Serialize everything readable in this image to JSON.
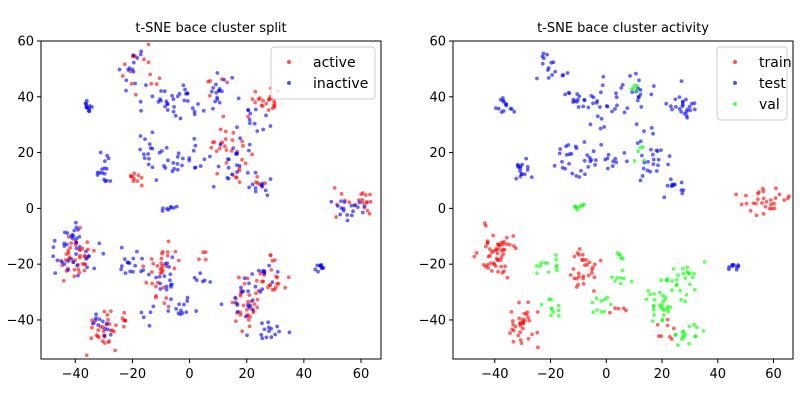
{
  "chart_data": [
    {
      "type": "scatter",
      "title": "t-SNE bace cluster split",
      "xlabel": "",
      "ylabel": "",
      "xlim": [
        -52,
        67
      ],
      "ylim": [
        -54,
        60
      ],
      "xticks": [
        -40,
        -20,
        0,
        20,
        40,
        60
      ],
      "yticks": [
        -40,
        -20,
        0,
        20,
        40,
        60
      ],
      "grid": false,
      "legend_position": "top-right",
      "series": [
        {
          "name": "active",
          "color": "#ff0000",
          "clusters": [
            {
              "cx": -40,
              "cy": -18,
              "sx": 3.5,
              "sy": 4.5,
              "n": 40
            },
            {
              "cx": -30,
              "cy": -43,
              "sx": 3.0,
              "sy": 3.5,
              "n": 30
            },
            {
              "cx": -23,
              "cy": -39,
              "sx": 1.5,
              "sy": 1.5,
              "n": 5
            },
            {
              "cx": -9,
              "cy": -22,
              "sx": 3.0,
              "sy": 5.0,
              "n": 32
            },
            {
              "cx": 27,
              "cy": 38,
              "sx": 2.5,
              "sy": 2.5,
              "n": 22
            },
            {
              "cx": 14,
              "cy": 22,
              "sx": 4.0,
              "sy": 4.0,
              "n": 30
            },
            {
              "cx": -20,
              "cy": 11,
              "sx": 2.0,
              "sy": 1.5,
              "n": 10
            },
            {
              "cx": -18,
              "cy": 47,
              "sx": 3.5,
              "sy": 5.0,
              "n": 15
            },
            {
              "cx": 27,
              "cy": -27,
              "sx": 3.5,
              "sy": 4.0,
              "n": 30
            },
            {
              "cx": 20,
              "cy": -36,
              "sx": 3.5,
              "sy": 5.0,
              "n": 25
            },
            {
              "cx": 57,
              "cy": 2,
              "sx": 4.5,
              "sy": 2.5,
              "n": 20
            },
            {
              "cx": 25,
              "cy": 8,
              "sx": 2.0,
              "sy": 1.5,
              "n": 6
            },
            {
              "cx": 5,
              "cy": -17,
              "sx": 1.0,
              "sy": 1.0,
              "n": 4
            },
            {
              "cx": 10,
              "cy": 43,
              "sx": 2.0,
              "sy": 2.0,
              "n": 5
            }
          ]
        },
        {
          "name": "inactive",
          "color": "#0000ff",
          "clusters": [
            {
              "cx": -40,
              "cy": -14,
              "sx": 4.5,
              "sy": 5.0,
              "n": 40
            },
            {
              "cx": -35,
              "cy": 37,
              "sx": 2.0,
              "sy": 1.5,
              "n": 12
            },
            {
              "cx": -30,
              "cy": 14,
              "sx": 1.5,
              "sy": 3.0,
              "n": 16
            },
            {
              "cx": -20,
              "cy": 50,
              "sx": 2.5,
              "sy": 3.0,
              "n": 14
            },
            {
              "cx": -14,
              "cy": 20,
              "sx": 2.0,
              "sy": 4.0,
              "n": 14
            },
            {
              "cx": -10,
              "cy": 39,
              "sx": 3.0,
              "sy": 3.0,
              "n": 14
            },
            {
              "cx": -7,
              "cy": 17,
              "sx": 2.5,
              "sy": 3.0,
              "n": 14
            },
            {
              "cx": 0,
              "cy": 38,
              "sx": 3.5,
              "sy": 5.0,
              "n": 20
            },
            {
              "cx": 10,
              "cy": 42,
              "sx": 2.5,
              "sy": 3.0,
              "n": 16
            },
            {
              "cx": 2,
              "cy": 18,
              "sx": 2.0,
              "sy": 2.0,
              "n": 10
            },
            {
              "cx": 15,
              "cy": 15,
              "sx": 4.0,
              "sy": 4.5,
              "n": 20
            },
            {
              "cx": 23,
              "cy": 32,
              "sx": 3.0,
              "sy": 4.0,
              "n": 14
            },
            {
              "cx": 24,
              "cy": 8,
              "sx": 2.0,
              "sy": 1.5,
              "n": 10
            },
            {
              "cx": -8,
              "cy": 0,
              "sx": 1.5,
              "sy": 0.7,
              "n": 8
            },
            {
              "cx": 55,
              "cy": 0,
              "sx": 4.0,
              "sy": 2.0,
              "n": 18
            },
            {
              "cx": 46,
              "cy": -21,
              "sx": 1.2,
              "sy": 0.7,
              "n": 10
            },
            {
              "cx": -21,
              "cy": -20,
              "sx": 2.5,
              "sy": 3.0,
              "n": 16
            },
            {
              "cx": -9,
              "cy": -25,
              "sx": 3.0,
              "sy": 4.0,
              "n": 18
            },
            {
              "cx": -3,
              "cy": -36,
              "sx": 2.5,
              "sy": 2.0,
              "n": 12
            },
            {
              "cx": 4,
              "cy": -25,
              "sx": 1.5,
              "sy": 1.5,
              "n": 6
            },
            {
              "cx": -30,
              "cy": -42,
              "sx": 2.5,
              "sy": 3.0,
              "n": 12
            },
            {
              "cx": 20,
              "cy": -32,
              "sx": 3.5,
              "sy": 4.5,
              "n": 20
            },
            {
              "cx": 29,
              "cy": -45,
              "sx": 3.5,
              "sy": 2.0,
              "n": 14
            },
            {
              "cx": 27,
              "cy": -24,
              "sx": 3.0,
              "sy": 3.0,
              "n": 10
            },
            {
              "cx": -16,
              "cy": -38,
              "sx": 2.0,
              "sy": 2.0,
              "n": 5
            }
          ]
        }
      ]
    },
    {
      "type": "scatter",
      "title": "t-SNE bace cluster activity",
      "xlabel": "",
      "ylabel": "",
      "xlim": [
        -55,
        67
      ],
      "ylim": [
        -54,
        60
      ],
      "xticks": [
        -40,
        -20,
        0,
        20,
        40,
        60
      ],
      "yticks": [
        -40,
        -20,
        0,
        20,
        40,
        60
      ],
      "grid": false,
      "legend_position": "top-right",
      "series": [
        {
          "name": "train",
          "color": "#ff0000",
          "clusters": [
            {
              "cx": -39,
              "cy": -16,
              "sx": 3.5,
              "sy": 5.0,
              "n": 55
            },
            {
              "cx": -30,
              "cy": -43,
              "sx": 3.0,
              "sy": 3.5,
              "n": 34
            },
            {
              "cx": -8,
              "cy": -22,
              "sx": 2.5,
              "sy": 5.0,
              "n": 30
            },
            {
              "cx": 57,
              "cy": 2,
              "sx": 4.5,
              "sy": 2.5,
              "n": 30
            },
            {
              "cx": 5,
              "cy": -36,
              "sx": 1.5,
              "sy": 1.5,
              "n": 5
            },
            {
              "cx": 22,
              "cy": -44,
              "sx": 2.0,
              "sy": 2.5,
              "n": 8
            }
          ]
        },
        {
          "name": "test",
          "color": "#0000ff",
          "clusters": [
            {
              "cx": -35,
              "cy": 37,
              "sx": 2.0,
              "sy": 1.5,
              "n": 14
            },
            {
              "cx": -30,
              "cy": 14,
              "sx": 1.5,
              "sy": 3.0,
              "n": 16
            },
            {
              "cx": -20,
              "cy": 50,
              "sx": 2.5,
              "sy": 3.0,
              "n": 16
            },
            {
              "cx": -14,
              "cy": 20,
              "sx": 2.0,
              "sy": 4.0,
              "n": 16
            },
            {
              "cx": -10,
              "cy": 39,
              "sx": 3.0,
              "sy": 3.0,
              "n": 16
            },
            {
              "cx": -6,
              "cy": 17,
              "sx": 2.5,
              "sy": 3.0,
              "n": 14
            },
            {
              "cx": 0,
              "cy": 37,
              "sx": 3.5,
              "sy": 5.0,
              "n": 22
            },
            {
              "cx": 11,
              "cy": 42,
              "sx": 2.5,
              "sy": 3.0,
              "n": 16
            },
            {
              "cx": 3,
              "cy": 18,
              "sx": 2.0,
              "sy": 2.0,
              "n": 10
            },
            {
              "cx": 16,
              "cy": 18,
              "sx": 4.0,
              "sy": 5.5,
              "n": 26
            },
            {
              "cx": 27,
              "cy": 36,
              "sx": 2.5,
              "sy": 3.0,
              "n": 24
            },
            {
              "cx": 24,
              "cy": 8,
              "sx": 2.0,
              "sy": 1.5,
              "n": 12
            },
            {
              "cx": 46,
              "cy": -21,
              "sx": 1.2,
              "sy": 0.7,
              "n": 10
            }
          ]
        },
        {
          "name": "val",
          "color": "#00ff00",
          "clusters": [
            {
              "cx": -10,
              "cy": 0,
              "sx": 1.5,
              "sy": 0.7,
              "n": 8
            },
            {
              "cx": -20,
              "cy": -21,
              "sx": 2.5,
              "sy": 2.0,
              "n": 12
            },
            {
              "cx": -20,
              "cy": -36,
              "sx": 2.0,
              "sy": 2.0,
              "n": 10
            },
            {
              "cx": -3,
              "cy": -35,
              "sx": 2.5,
              "sy": 1.5,
              "n": 10
            },
            {
              "cx": 5,
              "cy": -25,
              "sx": 2.0,
              "sy": 1.5,
              "n": 8
            },
            {
              "cx": 5,
              "cy": -17,
              "sx": 1.0,
              "sy": 0.8,
              "n": 5
            },
            {
              "cx": 20,
              "cy": -33,
              "sx": 3.5,
              "sy": 5.0,
              "n": 36
            },
            {
              "cx": 28,
              "cy": -25,
              "sx": 3.0,
              "sy": 3.0,
              "n": 18
            },
            {
              "cx": 30,
              "cy": -45,
              "sx": 3.5,
              "sy": 2.0,
              "n": 16
            },
            {
              "cx": 13,
              "cy": 20,
              "sx": 1.0,
              "sy": 1.5,
              "n": 5
            },
            {
              "cx": 10,
              "cy": 44,
              "sx": 1.5,
              "sy": 1.0,
              "n": 5
            }
          ]
        }
      ]
    }
  ]
}
